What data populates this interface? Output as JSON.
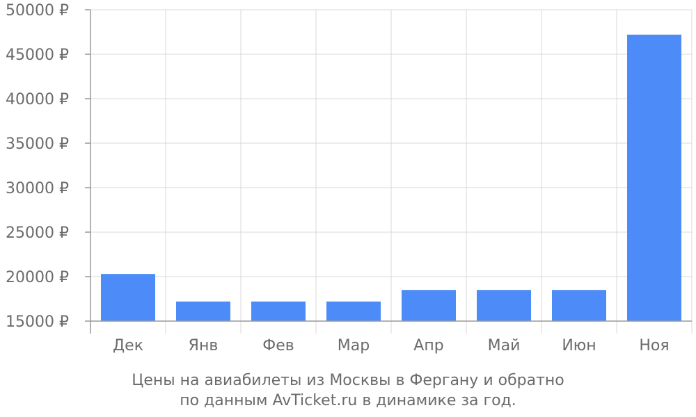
{
  "chart_data": {
    "type": "bar",
    "categories": [
      "Дек",
      "Янв",
      "Фев",
      "Мар",
      "Апр",
      "Май",
      "Июн",
      "Ноя"
    ],
    "values": [
      20300,
      17200,
      17200,
      17200,
      18500,
      18500,
      18500,
      47200
    ],
    "ylim": [
      15000,
      50000
    ],
    "yticks": [
      "15000 ₽",
      "20000 ₽",
      "25000 ₽",
      "30000 ₽",
      "35000 ₽",
      "40000 ₽",
      "45000 ₽",
      "50000 ₽"
    ],
    "grid": true,
    "bar_color": "#4d8bf8"
  },
  "caption": {
    "line1": "Цены на авиабилеты из Москвы в Фергану и обратно",
    "line2": "по данным AvTicket.ru в динамике за год."
  }
}
